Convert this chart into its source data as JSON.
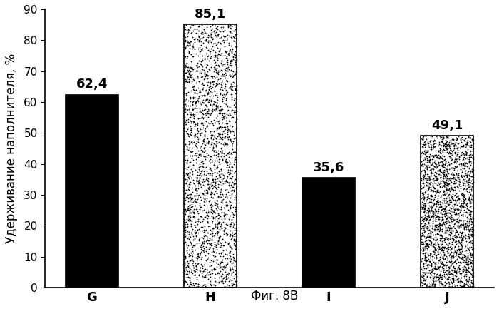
{
  "categories": [
    "G",
    "H",
    "I",
    "J"
  ],
  "values": [
    62.4,
    85.1,
    35.6,
    49.1
  ],
  "solid_bars": [
    0,
    2
  ],
  "hatched_bars": [
    1,
    3
  ],
  "ylabel": "Удерживание наполнителя, %",
  "xlabel": "Фиг. 8В",
  "ylim": [
    0,
    90
  ],
  "yticks": [
    0,
    10,
    20,
    30,
    40,
    50,
    60,
    70,
    80,
    90
  ],
  "ylabel_fontsize": 12,
  "tick_fontsize": 11,
  "value_fontsize": 13,
  "xlabel_fontsize": 12,
  "xtick_fontsize": 13,
  "bar_width": 0.45,
  "background_color": "#ffffff",
  "text_color": "#000000",
  "stipple_density": 2500,
  "stipple_size": 1.5
}
